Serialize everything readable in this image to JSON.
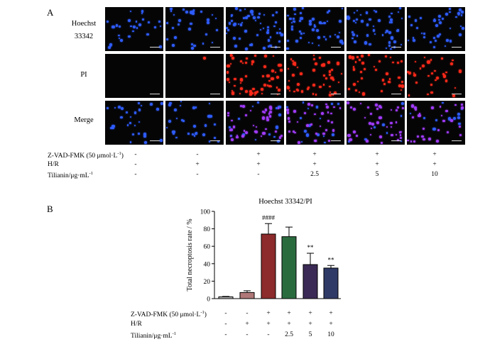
{
  "panel_a": {
    "letter": "A",
    "row_labels": {
      "hoechst_1": "Hoechst",
      "hoechst_2": "33342",
      "pi": "PI",
      "merge": "Merge"
    },
    "treatments": [
      {
        "label": "Z-VAD-FMK (50 μmol·L",
        "sup": "-1",
        "close": ")",
        "values": [
          "-",
          "-",
          "+",
          "+",
          "+",
          "+"
        ]
      },
      {
        "label": "H/R",
        "sup": "",
        "close": "",
        "values": [
          "-",
          "+",
          "+",
          "+",
          "+",
          "+"
        ]
      },
      {
        "label": "Tilianin/μg·mL",
        "sup": "-1",
        "close": "",
        "values": [
          "-",
          "-",
          "-",
          "2.5",
          "5",
          "10"
        ]
      }
    ],
    "colors": {
      "hoechst": "#2f5dff",
      "pi": "#ff2a1a",
      "merge": "#a23cff"
    }
  },
  "panel_b": {
    "letter": "B",
    "treatments": [
      {
        "label": "Z-VAD-FMK (50 μmol·L",
        "sup": "-1",
        "close": ")",
        "values": [
          "-",
          "-",
          "+",
          "+",
          "+",
          "+"
        ]
      },
      {
        "label": "H/R",
        "sup": "",
        "close": "",
        "values": [
          "-",
          "+",
          "+",
          "+",
          "+",
          "+"
        ]
      },
      {
        "label": "Tilianin/μg·mL",
        "sup": "-1",
        "close": "",
        "values": [
          "-",
          "-",
          "-",
          "2.5",
          "5",
          "10"
        ]
      }
    ]
  },
  "chart_data": {
    "type": "bar",
    "title": "Hoechst 33342/PI",
    "ylabel": "Total necroptosis rate / %",
    "ylim": [
      0,
      100
    ],
    "yticks": [
      0,
      20,
      40,
      60,
      80,
      100
    ],
    "values": [
      2,
      7,
      74,
      71,
      39,
      35
    ],
    "errors": [
      0.5,
      2,
      12,
      11,
      13,
      3
    ],
    "annotations": [
      "",
      "",
      "####",
      "",
      "**",
      "**"
    ],
    "colors": [
      "#bdbdbd",
      "#b07878",
      "#8c2a2c",
      "#2a6b3e",
      "#3b2a55",
      "#2f3a66"
    ]
  }
}
